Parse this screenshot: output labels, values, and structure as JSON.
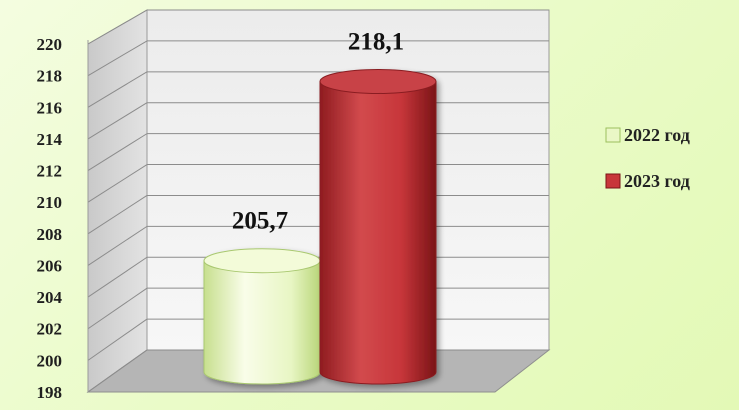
{
  "chart_data": {
    "type": "bar",
    "categories": [
      "2022 год",
      "2023 год"
    ],
    "values": [
      205.7,
      218.1
    ],
    "value_labels": [
      "205,7",
      "218,1"
    ],
    "ylim": [
      198,
      220
    ],
    "yticks": [
      "198",
      "200",
      "202",
      "204",
      "206",
      "208",
      "210",
      "212",
      "214",
      "216",
      "218",
      "220"
    ],
    "grid": true,
    "legend_position": "right",
    "style": "3d-cylinder",
    "series_colors": [
      "#eaf7c6",
      "#c8363a"
    ]
  }
}
